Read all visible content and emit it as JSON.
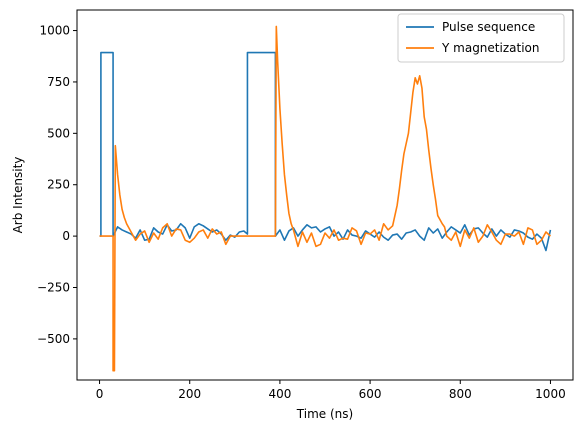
{
  "chart_data": {
    "type": "line",
    "title": "",
    "xlabel": "Time (ns)",
    "ylabel": "Arb Intensity",
    "xlim": [
      -50,
      1050
    ],
    "ylim": [
      -700,
      1100
    ],
    "xticks": [
      0,
      200,
      400,
      600,
      800,
      1000
    ],
    "yticks": [
      -500,
      -250,
      0,
      250,
      500,
      750,
      1000
    ],
    "xtick_labels": [
      "0",
      "200",
      "400",
      "600",
      "800",
      "1000"
    ],
    "ytick_labels": [
      "−500",
      "−250",
      "0",
      "250",
      "500",
      "750",
      "1000"
    ],
    "grid": false,
    "legend_position": "upper-right",
    "series": [
      {
        "name": "Pulse sequence",
        "color": "#1f77b4",
        "x": [
          0,
          3,
          3,
          30,
          30,
          40,
          50,
          60,
          70,
          80,
          90,
          100,
          110,
          120,
          130,
          140,
          150,
          160,
          170,
          180,
          190,
          200,
          210,
          220,
          230,
          240,
          250,
          260,
          270,
          280,
          290,
          300,
          310,
          320,
          328,
          328,
          390,
          390,
          400,
          410,
          420,
          430,
          440,
          450,
          460,
          470,
          480,
          490,
          500,
          510,
          520,
          530,
          540,
          550,
          560,
          570,
          580,
          590,
          600,
          610,
          620,
          630,
          640,
          650,
          660,
          670,
          680,
          690,
          700,
          710,
          720,
          730,
          740,
          750,
          760,
          770,
          780,
          790,
          800,
          810,
          820,
          830,
          840,
          850,
          860,
          870,
          880,
          890,
          900,
          910,
          920,
          930,
          940,
          950,
          960,
          970,
          980,
          990,
          1000
        ],
        "values": [
          0,
          0,
          893,
          893,
          0,
          45,
          30,
          20,
          10,
          -10,
          30,
          -20,
          -15,
          40,
          20,
          10,
          55,
          25,
          30,
          60,
          40,
          -10,
          45,
          60,
          50,
          35,
          20,
          30,
          10,
          -20,
          5,
          -5,
          20,
          25,
          10,
          893,
          893,
          0,
          30,
          -20,
          25,
          40,
          0,
          30,
          55,
          40,
          45,
          20,
          35,
          45,
          0,
          20,
          -15,
          30,
          5,
          0,
          -10,
          25,
          10,
          -5,
          20,
          -5,
          -20,
          5,
          10,
          -15,
          15,
          20,
          30,
          0,
          -20,
          40,
          15,
          35,
          -10,
          20,
          45,
          30,
          15,
          55,
          5,
          35,
          40,
          15,
          -5,
          35,
          0,
          30,
          10,
          -5,
          30,
          25,
          15,
          -5,
          -15,
          10,
          -10,
          -70,
          30
        ]
      },
      {
        "name": "Y magnetization",
        "color": "#ff7f0e",
        "x": [
          0,
          25,
          30,
          30,
          33,
          35,
          40,
          45,
          50,
          55,
          60,
          70,
          80,
          90,
          100,
          110,
          120,
          130,
          140,
          150,
          160,
          170,
          180,
          190,
          200,
          210,
          220,
          230,
          240,
          250,
          260,
          270,
          280,
          290,
          300,
          310,
          320,
          330,
          340,
          350,
          360,
          370,
          380,
          385,
          390,
          392,
          395,
          400,
          405,
          410,
          415,
          420,
          425,
          430,
          440,
          450,
          460,
          470,
          480,
          490,
          500,
          510,
          520,
          530,
          540,
          550,
          560,
          570,
          580,
          590,
          600,
          610,
          620,
          630,
          640,
          650,
          660,
          665,
          670,
          675,
          680,
          685,
          690,
          695,
          700,
          705,
          710,
          715,
          720,
          725,
          730,
          735,
          740,
          745,
          750,
          755,
          760,
          765,
          770,
          780,
          790,
          800,
          810,
          820,
          830,
          840,
          850,
          860,
          870,
          880,
          890,
          900,
          910,
          920,
          930,
          940,
          950,
          960,
          970,
          980,
          990,
          1000
        ],
        "values": [
          0,
          0,
          0,
          -655,
          -655,
          440,
          300,
          200,
          130,
          90,
          60,
          20,
          -20,
          10,
          25,
          -30,
          15,
          -15,
          40,
          60,
          0,
          35,
          30,
          -20,
          -30,
          -10,
          20,
          30,
          -10,
          35,
          10,
          20,
          -40,
          0,
          0,
          0,
          0,
          0,
          0,
          0,
          0,
          0,
          0,
          0,
          0,
          1020,
          850,
          620,
          450,
          300,
          200,
          110,
          60,
          30,
          -50,
          20,
          -30,
          15,
          -50,
          -40,
          15,
          -10,
          30,
          -20,
          -10,
          -15,
          40,
          25,
          -40,
          15,
          10,
          30,
          -20,
          60,
          30,
          50,
          150,
          230,
          320,
          400,
          450,
          500,
          600,
          700,
          770,
          740,
          780,
          720,
          580,
          520,
          420,
          330,
          250,
          180,
          100,
          80,
          60,
          45,
          0,
          -20,
          20,
          -50,
          30,
          -10,
          40,
          -30,
          0,
          55,
          20,
          -20,
          -40,
          10,
          10,
          0,
          20,
          -40,
          40,
          30,
          -40,
          -20,
          20,
          0
        ]
      }
    ]
  }
}
